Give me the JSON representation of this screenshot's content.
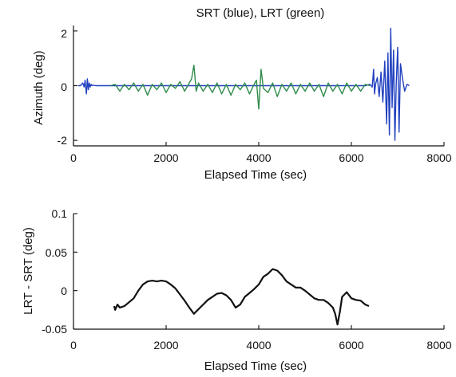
{
  "chart_data": [
    {
      "type": "line",
      "title": "SRT (blue),  LRT (green)",
      "xlabel": "Elapsed Time (sec)",
      "ylabel": "Azimuth (deg)",
      "xlim": [
        0,
        8000
      ],
      "ylim": [
        -2.2,
        2.2
      ],
      "xticks": [
        "0",
        "2000",
        "4000",
        "6000",
        "8000"
      ],
      "yticks": [
        "-2",
        "0",
        "2"
      ],
      "xtick_values": [
        0,
        2000,
        4000,
        6000,
        8000
      ],
      "ytick_values": [
        -2,
        0,
        2
      ],
      "grid": false,
      "series": [
        {
          "color": "#1f3fbf",
          "x": [
            100,
            150,
            200,
            230,
            250,
            280,
            300,
            320,
            340,
            360,
            380,
            400,
            420,
            480,
            600,
            700,
            800,
            900,
            1000,
            1200,
            1500,
            1800,
            2000,
            2500,
            3000,
            3500,
            4000,
            4500,
            5000,
            5500,
            6000,
            6300,
            6400,
            6450,
            6480,
            6500,
            6520,
            6560,
            6600,
            6640,
            6680,
            6720,
            6760,
            6790,
            6820,
            6850,
            6880,
            6910,
            6940,
            6970,
            7000,
            7030,
            7060,
            7100,
            7150,
            7200,
            7250
          ],
          "y": [
            0,
            0,
            0.1,
            -0.05,
            0.2,
            -0.3,
            0.25,
            -0.15,
            0.1,
            -0.05,
            0.05,
            0,
            0.02,
            0,
            0,
            0,
            0,
            0,
            0,
            0,
            0,
            0,
            0,
            0,
            0,
            0,
            0,
            0,
            0,
            0,
            0,
            0,
            0.05,
            -0.05,
            0.6,
            -0.3,
            0.05,
            0.3,
            -0.4,
            0.5,
            -0.6,
            0.9,
            -1.4,
            1.2,
            -1.8,
            2.1,
            -0.8,
            1.3,
            -2.0,
            0.2,
            1.4,
            -1.7,
            0.8,
            0.3,
            -0.2,
            0.05,
            0
          ]
        },
        {
          "color": "#2e8b4a",
          "x": [
            800,
            900,
            1000,
            1100,
            1200,
            1300,
            1400,
            1500,
            1600,
            1700,
            1800,
            1900,
            2000,
            2100,
            2200,
            2300,
            2400,
            2500,
            2550,
            2600,
            2650,
            2700,
            2800,
            2900,
            3000,
            3100,
            3200,
            3300,
            3400,
            3500,
            3600,
            3700,
            3800,
            3900,
            3950,
            4000,
            4050,
            4100,
            4200,
            4300,
            4400,
            4500,
            4600,
            4700,
            4800,
            4900,
            5000,
            5100,
            5200,
            5300,
            5400,
            5500,
            5600,
            5700,
            5800,
            5900,
            6000,
            6100,
            6200,
            6300,
            6400
          ],
          "y": [
            0,
            0.05,
            -0.2,
            0.05,
            -0.15,
            0.1,
            -0.2,
            0.05,
            -0.35,
            0.05,
            -0.15,
            0.1,
            -0.25,
            0.05,
            -0.1,
            0.15,
            -0.2,
            0.1,
            0.25,
            0.75,
            -0.2,
            0.1,
            -0.2,
            0.05,
            -0.25,
            0.1,
            -0.3,
            0.05,
            -0.35,
            0.05,
            -0.15,
            0.1,
            -0.3,
            0.05,
            0.2,
            -0.85,
            0.6,
            -0.1,
            -0.25,
            0.1,
            -0.4,
            0.05,
            -0.2,
            0.1,
            -0.3,
            0.05,
            -0.2,
            0.1,
            -0.2,
            0.05,
            -0.4,
            0.1,
            -0.2,
            0.05,
            -0.3,
            0.1,
            -0.2,
            0.05,
            -0.2,
            0.05,
            0
          ]
        }
      ]
    },
    {
      "type": "line",
      "title": "",
      "xlabel": "Elapsed Time (sec)",
      "ylabel": "LRT - SRT (deg)",
      "xlim": [
        0,
        8000
      ],
      "ylim": [
        -0.05,
        0.1
      ],
      "xticks": [
        "0",
        "2000",
        "4000",
        "6000",
        "8000"
      ],
      "yticks": [
        "-0.05",
        "0",
        "0.05",
        "0.1"
      ],
      "xtick_values": [
        0,
        2000,
        4000,
        6000,
        8000
      ],
      "ytick_values": [
        -0.05,
        0,
        0.05,
        0.1
      ],
      "grid": false,
      "series": [
        {
          "color": "#111111",
          "x": [
            880,
            900,
            950,
            1000,
            1100,
            1200,
            1300,
            1400,
            1500,
            1600,
            1700,
            1800,
            1900,
            2000,
            2100,
            2200,
            2300,
            2400,
            2500,
            2600,
            2700,
            2800,
            2900,
            3000,
            3100,
            3200,
            3300,
            3400,
            3500,
            3600,
            3700,
            3800,
            3900,
            4000,
            4100,
            4200,
            4300,
            4400,
            4500,
            4600,
            4700,
            4800,
            4900,
            5000,
            5100,
            5200,
            5300,
            5400,
            5500,
            5600,
            5650,
            5700,
            5750,
            5800,
            5900,
            6000,
            6100,
            6200,
            6300,
            6380
          ],
          "y": [
            -0.02,
            -0.025,
            -0.018,
            -0.022,
            -0.02,
            -0.015,
            -0.01,
            0.0,
            0.008,
            0.012,
            0.013,
            0.012,
            0.013,
            0.012,
            0.008,
            0.003,
            -0.005,
            -0.013,
            -0.022,
            -0.03,
            -0.024,
            -0.018,
            -0.012,
            -0.008,
            -0.004,
            -0.003,
            -0.006,
            -0.012,
            -0.022,
            -0.018,
            -0.008,
            -0.003,
            0.002,
            0.008,
            0.018,
            0.022,
            0.028,
            0.026,
            0.02,
            0.012,
            0.008,
            0.004,
            0.004,
            0.0,
            -0.005,
            -0.01,
            -0.012,
            -0.012,
            -0.016,
            -0.022,
            -0.03,
            -0.044,
            -0.028,
            -0.008,
            -0.002,
            -0.01,
            -0.012,
            -0.013,
            -0.018,
            -0.02
          ]
        }
      ]
    }
  ]
}
